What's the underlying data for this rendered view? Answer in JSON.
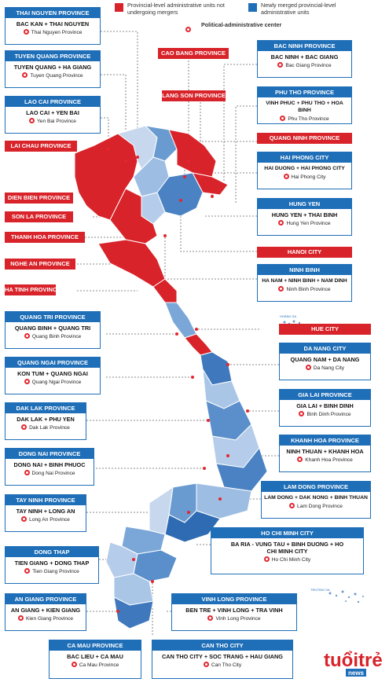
{
  "legend": {
    "red": "Provincial-level administrative units not undergoing mergers",
    "blue": "Newly merged provincial-level administrative units",
    "center": "Political-administrative center"
  },
  "map": {
    "hoang_sa": "HOÀNG SA",
    "truong_sa": "TRƯỜNG SA"
  },
  "red": {
    "cao_bang": "CAO BANG PROVINCE",
    "lang_son": "LANG SON PROVINCE",
    "lai_chau": "LAI CHAU PROVINCE",
    "dien_bien": "DIEN BIEN PROVINCE",
    "son_la": "SON LA PROVINCE",
    "thanh_hoa": "THANH HOA PROVINCE",
    "nghe_an": "NGHE AN PROVINCE",
    "ha_tinh": "HA TINH PROVINCE",
    "quang_ninh": "QUANG NINH PROVINCE",
    "hanoi": "HANOI CITY",
    "hue": "HUE CITY"
  },
  "cards": [
    {
      "title": "THAI NGUYEN PROVINCE",
      "merge": "BAC KAN + THAI NGUYEN",
      "center": "Thai Nguyen Province"
    },
    {
      "title": "TUYEN QUANG PROVINCE",
      "merge": "TUYEN QUANG + HA GIANG",
      "center": "Tuyen Quang Province"
    },
    {
      "title": "LAO CAI PROVINCE",
      "merge": "LAO CAI + YEN BAI",
      "center": "Yen Bai Province"
    },
    {
      "title": "BAC NINH PROVINCE",
      "merge": "BAC NINH + BAC GIANG",
      "center": "Bac Giang Province"
    },
    {
      "title": "PHU THO PROVINCE",
      "merge": "VINH PHUC + PHU THO + HOA BINH",
      "center": "Phu Tho Province"
    },
    {
      "title": "HAI PHONG CITY",
      "merge": "HAI DUONG + HAI PHONG CITY",
      "center": "Hai Phong City"
    },
    {
      "title": "HUNG YEN",
      "merge": "HUNG YEN + THAI BINH",
      "center": "Hung Yen Province"
    },
    {
      "title": "NINH BINH",
      "merge": "HA NAM + NINH BINH + NAM DINH",
      "center": "Ninh Binh Province"
    },
    {
      "title": "QUANG TRI PROVINCE",
      "merge": "QUANG BINH + QUANG TRI",
      "center": "Quang Binh Province"
    },
    {
      "title": "QUANG NGAI PROVINCE",
      "merge": "KON TUM + QUANG NGAI",
      "center": "Quang Ngai Province"
    },
    {
      "title": "DAK LAK PROVINCE",
      "merge": "DAK LAK + PHU YEN",
      "center": "Dak Lak Province"
    },
    {
      "title": "DONG NAI PROVINCE",
      "merge": "DONG NAI + BINH PHUOC",
      "center": "Dong Nai Province"
    },
    {
      "title": "TAY NINH PROVINCE",
      "merge": "TAY NINH + LONG AN",
      "center": "Long An Province"
    },
    {
      "title": "DONG THAP",
      "merge": "TIEN GIANG + DONG THAP",
      "center": "Tien Giang Province"
    },
    {
      "title": "AN GIANG PROVINCE",
      "merge": "AN GIANG + KIEN GIANG",
      "center": "Kien Giang Province"
    },
    {
      "title": "DA NANG CITY",
      "merge": "QUANG NAM + DA NANG",
      "center": "Da Nang City"
    },
    {
      "title": "GIA LAI PROVINCE",
      "merge": "GIA LAI + BINH DINH",
      "center": "Binh Dinh Province"
    },
    {
      "title": "KHANH HOA PROVINCE",
      "merge": "NINH THUAN + KHANH HOA",
      "center": "Khanh Hoa Province"
    },
    {
      "title": "LAM DONG PROVINCE",
      "merge": "LAM DONG + DAK NONG + BINH THUAN",
      "center": "Lam Dong Province"
    },
    {
      "title": "HO CHI MINH CITY",
      "merge": "BA RIA - VUNG TAU + BINH DUONG + HO CHI MINH CITY",
      "center": "Ho Chi Minh City"
    },
    {
      "title": "VINH LONG PROVINCE",
      "merge": "BEN TRE + VINH LONG + TRA VINH",
      "center": "Vinh Long Province"
    },
    {
      "title": "CA MAU PROVINCE",
      "merge": "BAC LIEU + CA MAU",
      "center": "Ca Mau Province"
    },
    {
      "title": "CAN THO CITY",
      "merge": "CAN THO CITY + SOC TRANG + HAU GIANG",
      "center": "Can Tho City"
    }
  ],
  "logo": {
    "text": "tuổi trẻ news"
  },
  "colors": {
    "red": "#d8232a",
    "blue": "#1f6fb8"
  }
}
